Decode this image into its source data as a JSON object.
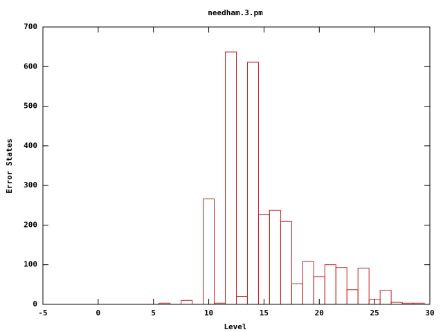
{
  "chart_data": {
    "type": "bar",
    "title": "needham.3.pm",
    "xlabel": "Level",
    "ylabel": "Error States",
    "x": [
      6,
      7,
      8,
      9,
      10,
      11,
      12,
      13,
      14,
      15,
      16,
      17,
      18,
      19,
      20,
      21,
      22,
      23,
      24,
      25,
      26,
      27,
      28,
      29
    ],
    "values": [
      3,
      0,
      10,
      0,
      266,
      3,
      637,
      20,
      611,
      226,
      237,
      209,
      52,
      108,
      70,
      100,
      93,
      37,
      91,
      12,
      35,
      5,
      3,
      3
    ],
    "color": "#c02020",
    "xlim": [
      -5,
      30
    ],
    "xticks": [
      -5,
      0,
      5,
      10,
      15,
      20,
      25,
      30
    ],
    "ylim": [
      0,
      700
    ],
    "yticks": [
      0,
      100,
      200,
      300,
      400,
      500,
      600,
      700
    ]
  }
}
